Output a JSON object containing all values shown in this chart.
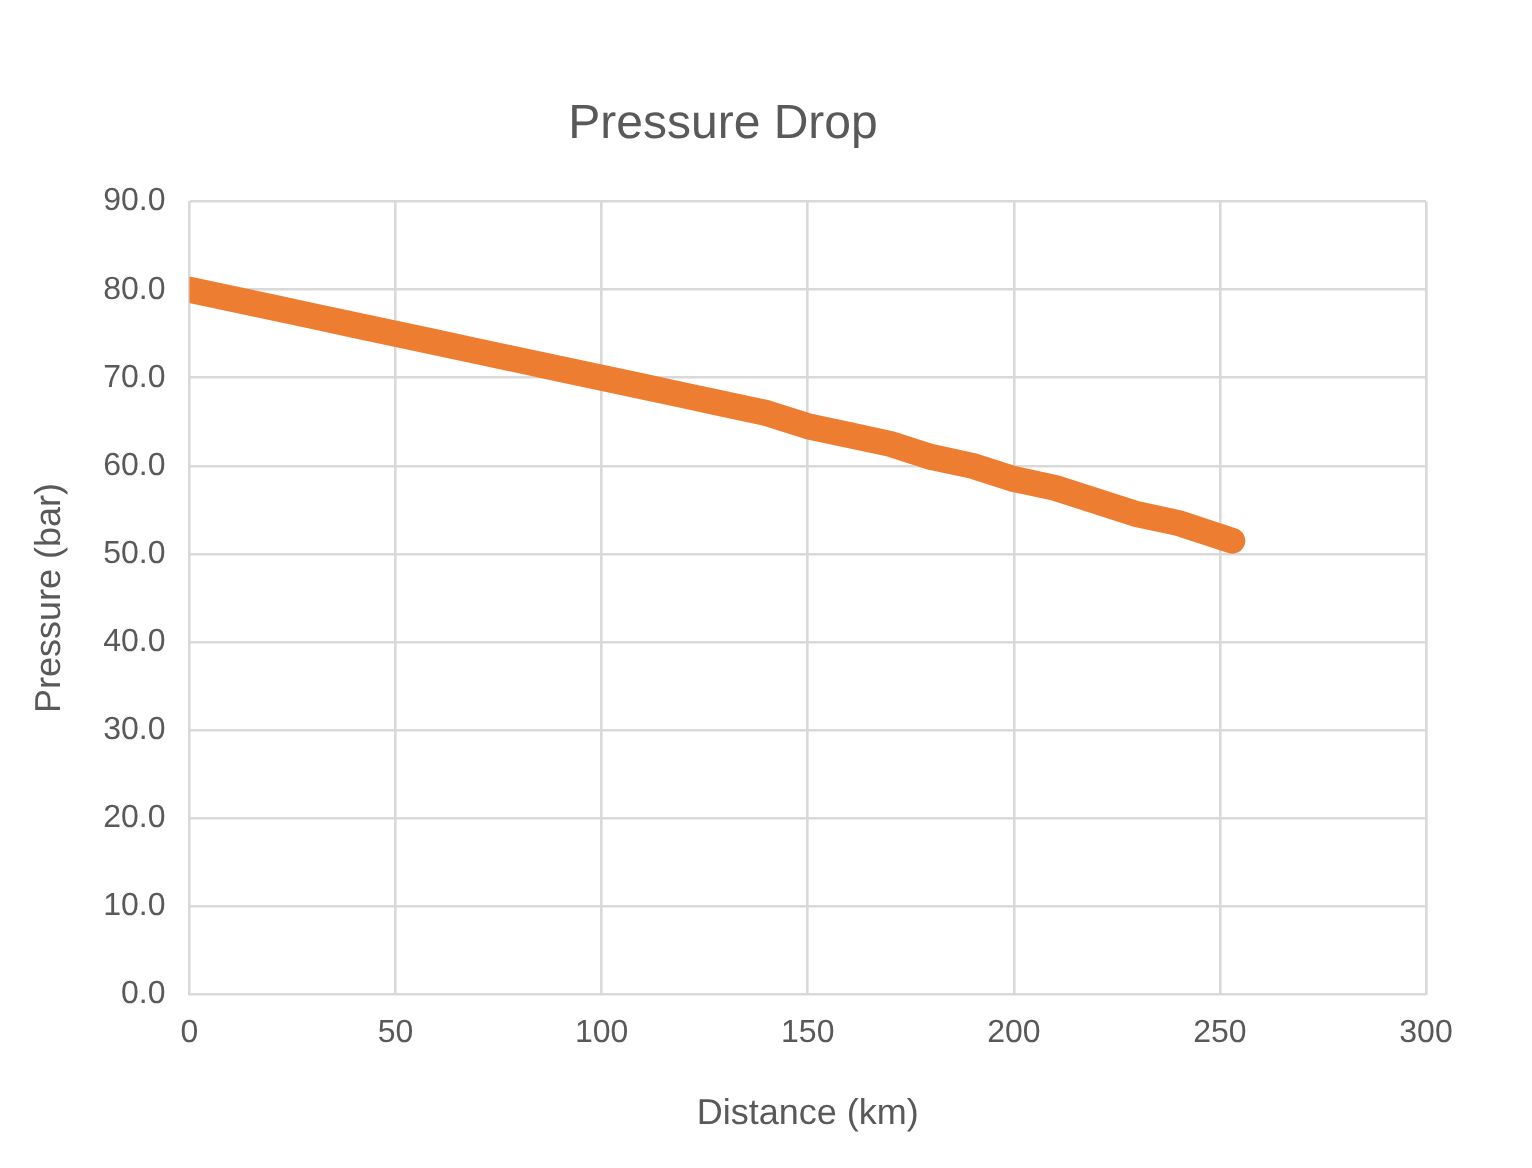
{
  "chart_data": {
    "type": "line",
    "title": "Pressure Drop",
    "xlabel": "Distance (km)",
    "ylabel": "Pressure (bar)",
    "x": [
      0,
      10,
      20,
      30,
      40,
      50,
      60,
      70,
      80,
      90,
      100,
      110,
      120,
      130,
      140,
      150,
      160,
      170,
      180,
      190,
      200,
      210,
      220,
      230,
      240,
      253
    ],
    "series": [
      {
        "color": "#ed7d31",
        "values": [
          80,
          79,
          78,
          77,
          76,
          75,
          74,
          73,
          72,
          71,
          70,
          69,
          68,
          67,
          66,
          64.5,
          63.5,
          62.5,
          61,
          60,
          58.5,
          57.5,
          56,
          54.5,
          53.5,
          51.5
        ]
      }
    ],
    "xlim": [
      0,
      300
    ],
    "xticks": [
      0,
      50,
      100,
      150,
      200,
      250,
      300
    ],
    "ylim": [
      0,
      90
    ],
    "yticks": [
      {
        "value": 0,
        "label": "0.0"
      },
      {
        "value": 10,
        "label": "10.0"
      },
      {
        "value": 20,
        "label": "20.0"
      },
      {
        "value": 30,
        "label": "30.0"
      },
      {
        "value": 40,
        "label": "40.0"
      },
      {
        "value": 50,
        "label": "50.0"
      },
      {
        "value": 60,
        "label": "60.0"
      },
      {
        "value": 70,
        "label": "70.0"
      },
      {
        "value": 80,
        "label": "80.0"
      },
      {
        "value": 90,
        "label": "90.0"
      }
    ],
    "grid": true,
    "legend": false,
    "marker": "none",
    "line_style": "solid"
  }
}
